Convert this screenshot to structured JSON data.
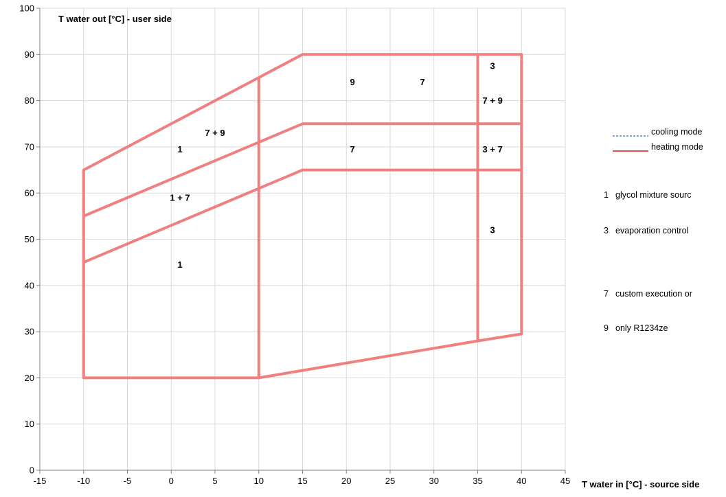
{
  "chart_data": {
    "type": "line",
    "xlabel": "T water in [°C] - source side",
    "ylabel": "T water out [°C] - user side",
    "xlim": [
      -15,
      45
    ],
    "ylim": [
      0,
      100
    ],
    "xticks": [
      -15,
      -10,
      -5,
      0,
      5,
      10,
      15,
      20,
      25,
      30,
      35,
      40,
      45
    ],
    "yticks": [
      0,
      10,
      20,
      30,
      40,
      50,
      60,
      70,
      80,
      90,
      100
    ],
    "grid": true,
    "legend": "right",
    "series": [
      {
        "name": "heating mode",
        "color": "#f08080",
        "segments": [
          [
            [
              -10,
              20
            ],
            [
              10,
              20
            ],
            [
              35,
              28
            ],
            [
              40,
              29.5
            ],
            [
              40,
              90
            ],
            [
              15,
              90
            ],
            [
              10,
              85
            ],
            [
              -10,
              65
            ],
            [
              -10,
              20
            ]
          ],
          [
            [
              -10,
              55
            ],
            [
              15,
              75
            ],
            [
              40,
              75
            ]
          ],
          [
            [
              -10,
              45
            ],
            [
              15,
              65
            ],
            [
              40,
              65
            ]
          ],
          [
            [
              10,
              20
            ],
            [
              10,
              85
            ]
          ],
          [
            [
              35,
              28
            ],
            [
              35,
              90
            ]
          ]
        ]
      },
      {
        "name": "cooling mode",
        "color": "#4f81bd",
        "segments": []
      }
    ],
    "zone_labels": [
      {
        "text": "3",
        "x": 36.7,
        "y": 87.5
      },
      {
        "text": "9",
        "x": 20.7,
        "y": 84
      },
      {
        "text": "7",
        "x": 28.7,
        "y": 84
      },
      {
        "text": "7 + 9",
        "x": 36.7,
        "y": 80
      },
      {
        "text": "7 + 9",
        "x": 5,
        "y": 73
      },
      {
        "text": "1",
        "x": 1,
        "y": 69.5
      },
      {
        "text": "7",
        "x": 20.7,
        "y": 69.5
      },
      {
        "text": "3 + 7",
        "x": 36.7,
        "y": 69.5
      },
      {
        "text": "1 + 7",
        "x": 1,
        "y": 59
      },
      {
        "text": "3",
        "x": 36.7,
        "y": 52
      },
      {
        "text": "1",
        "x": 1,
        "y": 44.5
      }
    ],
    "notes": [
      {
        "number": "1",
        "text": "glycol mixture sourc"
      },
      {
        "number": "3",
        "text": "evaporation control"
      },
      {
        "number": "7",
        "text": "custom execution or"
      },
      {
        "number": "9",
        "text": "only R1234ze"
      }
    ],
    "legend_entries": [
      {
        "label": "cooling mode",
        "color": "#4f81bd",
        "dashed": true
      },
      {
        "label": "heating mode",
        "color": "#e05050",
        "dashed": false
      }
    ]
  }
}
